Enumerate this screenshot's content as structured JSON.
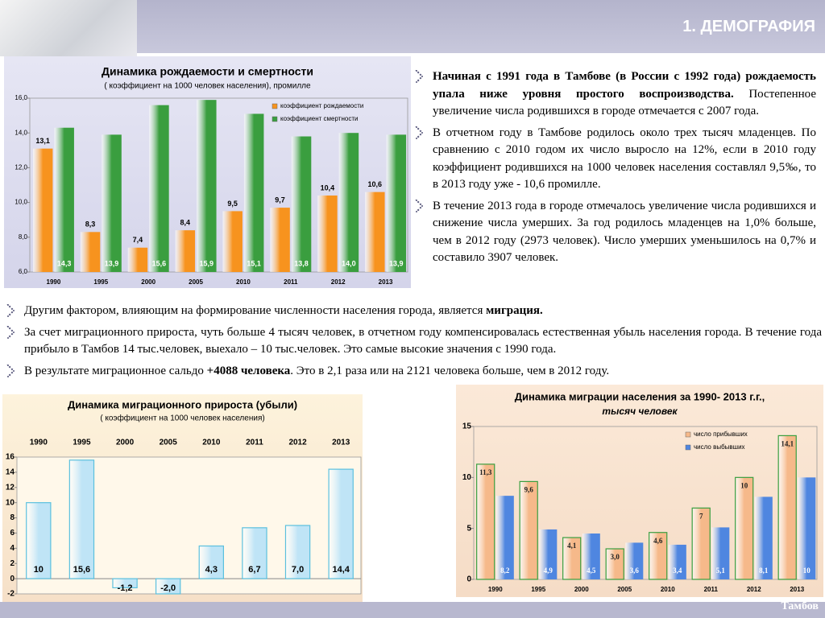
{
  "slide": {
    "header": "1. ДЕМОГРАФИЯ",
    "footer": "Тамбов",
    "paragraphs": [
      {
        "runs": [
          {
            "text": "Начиная с 1991 года в Тамбове (в России с 1992 года) рождаемость упала ниже уровня простого воспроизводства.",
            "bold": true
          },
          {
            "text": " Постепенное увеличение числа родившихся в городе отмечается с 2007 года.",
            "bold": false
          }
        ]
      },
      {
        "runs": [
          {
            "text": "В отчетном году в Тамбове родилось около трех тысяч младенцев. По сравнению с 2010 годом их число выросло на 12%, если в 2010 году коэффициент родившихся на 1000 человек населения составлял 9,5‰, то в 2013 году уже - 10,6 промилле.",
            "bold": false
          }
        ]
      },
      {
        "runs": [
          {
            "text": "В течение 2013 года в городе отмечалось увеличение числа родившихся и снижение числа умерших. За год родилось младенцев на 1,0% больше, чем в 2012 году (2973 человек). Число умерших уменьшилось на 0,7% и составило 3907 человек.",
            "bold": false
          }
        ]
      },
      {
        "runs": [
          {
            "text": "Другим фактором, влияющим на формирование численности населения города, является ",
            "bold": false
          },
          {
            "text": "миграция.",
            "bold": true
          }
        ]
      },
      {
        "runs": [
          {
            "text": "За счет миграционного прироста, чуть больше 4 тысяч человек, в отчетном году компенсировалась естественная убыль населения города. В течение года прибыло в Тамбов 14 тыс.человек, выехало – 10 тыс.человек. Это самые высокие значения с 1990 года.",
            "bold": false
          }
        ]
      },
      {
        "runs": [
          {
            "text": "В результате миграционное сальдо ",
            "bold": false
          },
          {
            "text": "+4088 человека",
            "bold": true
          },
          {
            "text": ". Это в 2,1 раза  или на 2121 человека больше, чем в 2012  году.",
            "bold": false
          }
        ]
      }
    ]
  },
  "chart_data": [
    {
      "type": "bar",
      "title": "Динамика рождаемости и смертности",
      "subtitle": "( коэффициент на 1000 человек населения), промилле",
      "categories": [
        "1990",
        "1995",
        "2000",
        "2005",
        "2010",
        "2011",
        "2012",
        "2013"
      ],
      "series": [
        {
          "name": "коэффициент рождаемости",
          "color": "#f7931e",
          "label_position": "above",
          "label_color": "#000000",
          "values": [
            13.1,
            8.3,
            7.4,
            8.4,
            9.5,
            9.7,
            10.4,
            10.6
          ],
          "value_labels": [
            "13,1",
            "8,3",
            "7,4",
            "8,4",
            "9,5",
            "9,7",
            "10,4",
            "10,6"
          ]
        },
        {
          "name": "коэффициент смертности",
          "color": "#3a9e3f",
          "label_position": "inside_base",
          "label_color": "#ffffff",
          "values": [
            14.3,
            13.9,
            15.6,
            15.9,
            15.1,
            13.8,
            14.0,
            13.9
          ],
          "value_labels": [
            "14,3",
            "13,9",
            "15,6",
            "15,9",
            "15,1",
            "13,8",
            "14,0",
            "13,9"
          ]
        }
      ],
      "ylim": [
        6,
        16
      ],
      "yticks": [
        {
          "value": 6,
          "label": "6,0"
        },
        {
          "value": 8,
          "label": "8,0"
        },
        {
          "value": 10,
          "label": "10,0"
        },
        {
          "value": 12,
          "label": "12,0"
        },
        {
          "value": 14,
          "label": "14,0"
        },
        {
          "value": 16,
          "label": "16,0"
        }
      ],
      "grid": false,
      "legend": "top right",
      "x_axis_position": "bottom"
    },
    {
      "type": "bar",
      "title": "Динамика миграционного прироста (убыли)",
      "subtitle": "( коэффициент на 1000 человек населения)",
      "categories": [
        "1990",
        "1995",
        "2000",
        "2005",
        "2010",
        "2011",
        "2012",
        "2013"
      ],
      "values": [
        10,
        15.6,
        -1.2,
        -2.0,
        4.3,
        6.7,
        7.0,
        14.4
      ],
      "value_labels": [
        "10",
        "15,6",
        "-1,2",
        "-2,0",
        "4,3",
        "6,7",
        "7,0",
        "14,4"
      ],
      "color": "#bfe4f6",
      "label_position": "at_zero",
      "label_color": "#000000",
      "ylim": [
        -2,
        16
      ],
      "yticks": [
        -2,
        0,
        2,
        4,
        6,
        8,
        10,
        12,
        14,
        16
      ],
      "grid": false,
      "x_axis_position": "top"
    },
    {
      "type": "bar",
      "title": "Динамика миграции населения за 1990- 2013 г.г.,",
      "subtitle": "тысяч человек",
      "categories": [
        "1990",
        "1995",
        "2000",
        "2005",
        "2010",
        "2011",
        "2012",
        "2013"
      ],
      "series": [
        {
          "name": "число прибывших",
          "color": "#f6b98a",
          "label_position": "inside_top",
          "label_color": "#222222",
          "values": [
            11.3,
            9.6,
            4.1,
            3.0,
            4.6,
            7,
            10,
            14.1
          ],
          "value_labels": [
            "11,3",
            "9,6",
            "4,1",
            "3,0",
            "4,6",
            "7",
            "10",
            "14,1"
          ]
        },
        {
          "name": "число выбывших",
          "color": "#4f86e0",
          "label_position": "inside_base",
          "label_color": "#ffffff",
          "values": [
            8.2,
            4.9,
            4.5,
            3.6,
            3.4,
            5.1,
            8.1,
            10
          ],
          "value_labels": [
            "8,2",
            "4,9",
            "4,5",
            "3,6",
            "3,4",
            "5,1",
            "8,1",
            "10"
          ]
        }
      ],
      "ylim": [
        0,
        15
      ],
      "yticks": [
        0,
        5,
        10,
        15
      ],
      "grid": false,
      "legend": "top right",
      "x_axis_position": "bottom"
    }
  ]
}
